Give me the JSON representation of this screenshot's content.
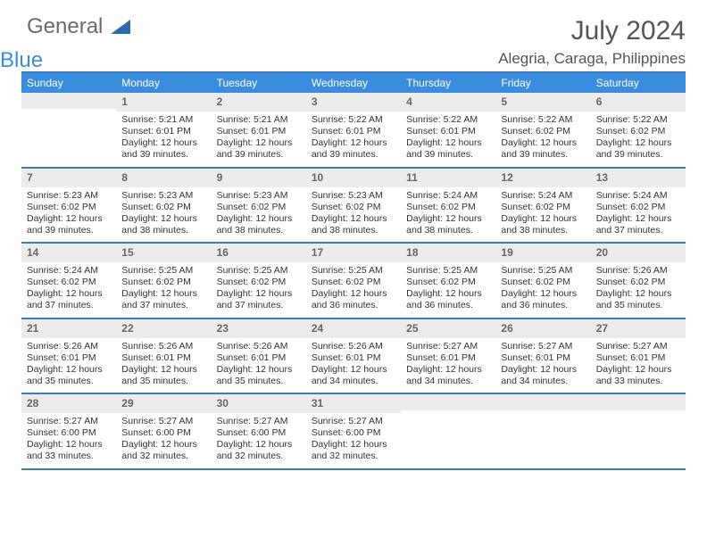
{
  "logo": {
    "text1": "General",
    "text2": "Blue"
  },
  "title": "July 2024",
  "location": "Alegria, Caraga, Philippines",
  "colors": {
    "header_bg": "#3a8dde",
    "header_text": "#ffffff",
    "border": "#3a7cb8",
    "daynum_bg": "#ececec",
    "daynum_text": "#666666",
    "body_text": "#333333",
    "page_bg": "#ffffff",
    "title_text": "#555555"
  },
  "day_names": [
    "Sunday",
    "Monday",
    "Tuesday",
    "Wednesday",
    "Thursday",
    "Friday",
    "Saturday"
  ],
  "weeks": [
    [
      {
        "n": "",
        "sr": "",
        "ss": "",
        "dl": ""
      },
      {
        "n": "1",
        "sr": "Sunrise: 5:21 AM",
        "ss": "Sunset: 6:01 PM",
        "dl": "Daylight: 12 hours and 39 minutes."
      },
      {
        "n": "2",
        "sr": "Sunrise: 5:21 AM",
        "ss": "Sunset: 6:01 PM",
        "dl": "Daylight: 12 hours and 39 minutes."
      },
      {
        "n": "3",
        "sr": "Sunrise: 5:22 AM",
        "ss": "Sunset: 6:01 PM",
        "dl": "Daylight: 12 hours and 39 minutes."
      },
      {
        "n": "4",
        "sr": "Sunrise: 5:22 AM",
        "ss": "Sunset: 6:01 PM",
        "dl": "Daylight: 12 hours and 39 minutes."
      },
      {
        "n": "5",
        "sr": "Sunrise: 5:22 AM",
        "ss": "Sunset: 6:02 PM",
        "dl": "Daylight: 12 hours and 39 minutes."
      },
      {
        "n": "6",
        "sr": "Sunrise: 5:22 AM",
        "ss": "Sunset: 6:02 PM",
        "dl": "Daylight: 12 hours and 39 minutes."
      }
    ],
    [
      {
        "n": "7",
        "sr": "Sunrise: 5:23 AM",
        "ss": "Sunset: 6:02 PM",
        "dl": "Daylight: 12 hours and 39 minutes."
      },
      {
        "n": "8",
        "sr": "Sunrise: 5:23 AM",
        "ss": "Sunset: 6:02 PM",
        "dl": "Daylight: 12 hours and 38 minutes."
      },
      {
        "n": "9",
        "sr": "Sunrise: 5:23 AM",
        "ss": "Sunset: 6:02 PM",
        "dl": "Daylight: 12 hours and 38 minutes."
      },
      {
        "n": "10",
        "sr": "Sunrise: 5:23 AM",
        "ss": "Sunset: 6:02 PM",
        "dl": "Daylight: 12 hours and 38 minutes."
      },
      {
        "n": "11",
        "sr": "Sunrise: 5:24 AM",
        "ss": "Sunset: 6:02 PM",
        "dl": "Daylight: 12 hours and 38 minutes."
      },
      {
        "n": "12",
        "sr": "Sunrise: 5:24 AM",
        "ss": "Sunset: 6:02 PM",
        "dl": "Daylight: 12 hours and 38 minutes."
      },
      {
        "n": "13",
        "sr": "Sunrise: 5:24 AM",
        "ss": "Sunset: 6:02 PM",
        "dl": "Daylight: 12 hours and 37 minutes."
      }
    ],
    [
      {
        "n": "14",
        "sr": "Sunrise: 5:24 AM",
        "ss": "Sunset: 6:02 PM",
        "dl": "Daylight: 12 hours and 37 minutes."
      },
      {
        "n": "15",
        "sr": "Sunrise: 5:25 AM",
        "ss": "Sunset: 6:02 PM",
        "dl": "Daylight: 12 hours and 37 minutes."
      },
      {
        "n": "16",
        "sr": "Sunrise: 5:25 AM",
        "ss": "Sunset: 6:02 PM",
        "dl": "Daylight: 12 hours and 37 minutes."
      },
      {
        "n": "17",
        "sr": "Sunrise: 5:25 AM",
        "ss": "Sunset: 6:02 PM",
        "dl": "Daylight: 12 hours and 36 minutes."
      },
      {
        "n": "18",
        "sr": "Sunrise: 5:25 AM",
        "ss": "Sunset: 6:02 PM",
        "dl": "Daylight: 12 hours and 36 minutes."
      },
      {
        "n": "19",
        "sr": "Sunrise: 5:25 AM",
        "ss": "Sunset: 6:02 PM",
        "dl": "Daylight: 12 hours and 36 minutes."
      },
      {
        "n": "20",
        "sr": "Sunrise: 5:26 AM",
        "ss": "Sunset: 6:02 PM",
        "dl": "Daylight: 12 hours and 35 minutes."
      }
    ],
    [
      {
        "n": "21",
        "sr": "Sunrise: 5:26 AM",
        "ss": "Sunset: 6:01 PM",
        "dl": "Daylight: 12 hours and 35 minutes."
      },
      {
        "n": "22",
        "sr": "Sunrise: 5:26 AM",
        "ss": "Sunset: 6:01 PM",
        "dl": "Daylight: 12 hours and 35 minutes."
      },
      {
        "n": "23",
        "sr": "Sunrise: 5:26 AM",
        "ss": "Sunset: 6:01 PM",
        "dl": "Daylight: 12 hours and 35 minutes."
      },
      {
        "n": "24",
        "sr": "Sunrise: 5:26 AM",
        "ss": "Sunset: 6:01 PM",
        "dl": "Daylight: 12 hours and 34 minutes."
      },
      {
        "n": "25",
        "sr": "Sunrise: 5:27 AM",
        "ss": "Sunset: 6:01 PM",
        "dl": "Daylight: 12 hours and 34 minutes."
      },
      {
        "n": "26",
        "sr": "Sunrise: 5:27 AM",
        "ss": "Sunset: 6:01 PM",
        "dl": "Daylight: 12 hours and 34 minutes."
      },
      {
        "n": "27",
        "sr": "Sunrise: 5:27 AM",
        "ss": "Sunset: 6:01 PM",
        "dl": "Daylight: 12 hours and 33 minutes."
      }
    ],
    [
      {
        "n": "28",
        "sr": "Sunrise: 5:27 AM",
        "ss": "Sunset: 6:00 PM",
        "dl": "Daylight: 12 hours and 33 minutes."
      },
      {
        "n": "29",
        "sr": "Sunrise: 5:27 AM",
        "ss": "Sunset: 6:00 PM",
        "dl": "Daylight: 12 hours and 32 minutes."
      },
      {
        "n": "30",
        "sr": "Sunrise: 5:27 AM",
        "ss": "Sunset: 6:00 PM",
        "dl": "Daylight: 12 hours and 32 minutes."
      },
      {
        "n": "31",
        "sr": "Sunrise: 5:27 AM",
        "ss": "Sunset: 6:00 PM",
        "dl": "Daylight: 12 hours and 32 minutes."
      },
      {
        "n": "",
        "sr": "",
        "ss": "",
        "dl": ""
      },
      {
        "n": "",
        "sr": "",
        "ss": "",
        "dl": ""
      },
      {
        "n": "",
        "sr": "",
        "ss": "",
        "dl": ""
      }
    ]
  ]
}
